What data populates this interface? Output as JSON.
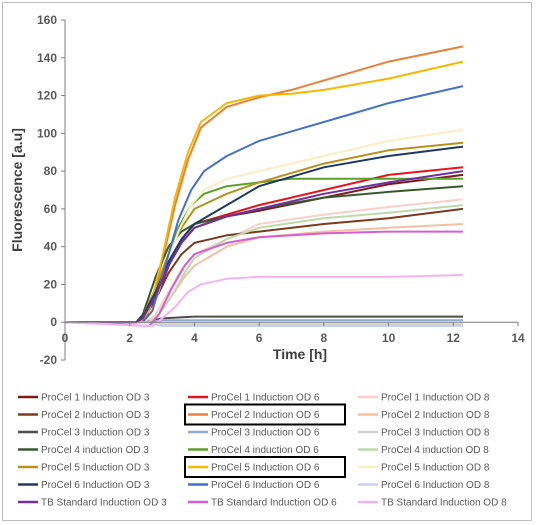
{
  "chart_data": {
    "type": "line",
    "title": "",
    "xlabel": "Time   [h]",
    "ylabel": "Fluorescence   [a.u]",
    "xlim": [
      0,
      14
    ],
    "ylim": [
      -20,
      160
    ],
    "xticks": [
      "0",
      "2",
      "4",
      "6",
      "8",
      "10",
      "12",
      "14"
    ],
    "yticks": [
      "-20",
      "0",
      "20",
      "40",
      "60",
      "80",
      "100",
      "120",
      "140",
      "160"
    ],
    "grid": false,
    "legend_position": "bottom",
    "highlighted_series": [
      "ProCel 2 Induction OD 6",
      "ProCel 5 Induction OD 6"
    ],
    "series": [
      {
        "name": "ProCel 1 Induction OD 3",
        "color": "#7b1a1a",
        "x": [
          0,
          2.2,
          2.4,
          2.8,
          3.2,
          3.6,
          4,
          5,
          6,
          8,
          10,
          12.3
        ],
        "values": [
          0,
          0,
          2,
          14,
          30,
          42,
          50,
          56,
          59,
          66,
          73,
          78
        ]
      },
      {
        "name": "ProCel 1 Induction OD 6",
        "color": "#e8141c",
        "x": [
          0,
          2.3,
          2.5,
          2.9,
          3.3,
          3.7,
          4,
          5,
          6,
          8,
          10,
          12.3
        ],
        "values": [
          0,
          0,
          3,
          16,
          34,
          46,
          52,
          57,
          62,
          70,
          78,
          82
        ]
      },
      {
        "name": "ProCel 1 Induction OD 8",
        "color": "#f7cfcb",
        "x": [
          0,
          2.5,
          2.8,
          3.2,
          3.6,
          4,
          5,
          6,
          8,
          10,
          12.3
        ],
        "values": [
          0,
          0,
          4,
          16,
          28,
          36,
          44,
          52,
          57,
          61,
          65
        ]
      },
      {
        "name": "ProCel 2 Induction OD 3",
        "color": "#7a3b1e",
        "x": [
          0,
          2.2,
          2.4,
          2.8,
          3.2,
          3.6,
          4,
          5,
          6,
          8,
          10,
          12.3
        ],
        "values": [
          0,
          0,
          2,
          12,
          26,
          36,
          42,
          46,
          48,
          52,
          55,
          60
        ]
      },
      {
        "name": "ProCel 2 Induction OD 6",
        "color": "#e8803a",
        "x": [
          0,
          2.3,
          2.6,
          3,
          3.4,
          3.8,
          4.2,
          5,
          6,
          7,
          8,
          10,
          12.3
        ],
        "values": [
          0,
          0,
          6,
          32,
          62,
          86,
          103,
          114,
          119,
          123,
          128,
          138,
          146
        ]
      },
      {
        "name": "ProCel 2 Induction OD 8",
        "color": "#f3c0a3",
        "x": [
          0,
          2.6,
          2.9,
          3.3,
          3.7,
          4,
          5,
          6,
          8,
          10,
          12.3
        ],
        "values": [
          0,
          0,
          4,
          14,
          24,
          30,
          40,
          45,
          48,
          50,
          52
        ]
      },
      {
        "name": "ProCel 3 Induction OD 3",
        "color": "#4d4d4d",
        "x": [
          0,
          2.5,
          3,
          4,
          6,
          8,
          10,
          12.3
        ],
        "values": [
          0,
          0,
          2,
          3,
          3,
          3,
          3,
          3
        ]
      },
      {
        "name": "ProCel 3 Induction OD 6",
        "color": "#8faad8",
        "x": [
          0,
          2.5,
          3,
          4,
          6,
          8,
          10,
          12.3
        ],
        "values": [
          0,
          0,
          1,
          1,
          1,
          1,
          1,
          1
        ]
      },
      {
        "name": "ProCel 3 Induction OD 8",
        "color": "#d0d0d0",
        "x": [
          0,
          2.5,
          3,
          4,
          6,
          8,
          10,
          12.3
        ],
        "values": [
          0,
          0,
          -1,
          -1,
          -1,
          -1,
          -1,
          -1
        ]
      },
      {
        "name": "ProCel 4 induction OD 3",
        "color": "#375a2a",
        "x": [
          0,
          2.2,
          2.4,
          2.8,
          3.2,
          3.6,
          4,
          5,
          6,
          8,
          10,
          12.3
        ],
        "values": [
          0,
          0,
          4,
          24,
          40,
          48,
          52,
          56,
          60,
          66,
          69,
          72
        ]
      },
      {
        "name": "ProCel 4 induction OD 6",
        "color": "#5aa02c",
        "x": [
          0,
          2.4,
          2.7,
          3.1,
          3.5,
          3.9,
          4.3,
          5,
          6,
          7,
          8,
          10,
          12.3
        ],
        "values": [
          0,
          0,
          6,
          28,
          50,
          62,
          68,
          72,
          74,
          76,
          76,
          76,
          76
        ]
      },
      {
        "name": "ProCel 4 induction OD 8",
        "color": "#bcd9a8",
        "x": [
          0,
          2.6,
          2.9,
          3.3,
          3.7,
          4,
          5,
          6,
          8,
          10,
          12.3
        ],
        "values": [
          0,
          0,
          4,
          14,
          26,
          34,
          44,
          50,
          55,
          58,
          62
        ]
      },
      {
        "name": "ProCel 5 Induction OD 3",
        "color": "#b8901a",
        "x": [
          0,
          2.2,
          2.4,
          2.8,
          3.2,
          3.6,
          4,
          5,
          6,
          8,
          10,
          12.3
        ],
        "values": [
          0,
          0,
          3,
          18,
          36,
          50,
          60,
          68,
          74,
          84,
          91,
          95
        ]
      },
      {
        "name": "ProCel 5 Induction OD 6",
        "color": "#f5b800",
        "x": [
          0,
          2.3,
          2.6,
          3,
          3.4,
          3.8,
          4.2,
          5,
          6,
          7,
          8,
          10,
          12.3
        ],
        "values": [
          0,
          0,
          6,
          34,
          66,
          90,
          106,
          116,
          120,
          121,
          123,
          129,
          138
        ]
      },
      {
        "name": "ProCel 5 Induction OD 8",
        "color": "#fbeec2",
        "x": [
          0,
          2.4,
          2.7,
          3.1,
          3.5,
          3.9,
          4.3,
          5,
          6,
          8,
          10,
          12.3
        ],
        "values": [
          0,
          0,
          6,
          28,
          48,
          62,
          70,
          76,
          80,
          88,
          96,
          102
        ]
      },
      {
        "name": "ProCel 6 Induction OD 3",
        "color": "#1f3864",
        "x": [
          0,
          2.2,
          2.4,
          2.8,
          3.2,
          3.6,
          4,
          5,
          6,
          8,
          10,
          12.3
        ],
        "values": [
          0,
          0,
          3,
          16,
          32,
          44,
          52,
          62,
          72,
          82,
          88,
          93
        ]
      },
      {
        "name": "ProCel 6 Induction OD 6",
        "color": "#4472c4",
        "x": [
          0,
          2.4,
          2.7,
          3.1,
          3.5,
          3.9,
          4.3,
          5,
          6,
          7,
          8,
          10,
          12.3
        ],
        "values": [
          0,
          0,
          6,
          30,
          54,
          70,
          80,
          88,
          96,
          101,
          106,
          116,
          125
        ]
      },
      {
        "name": "ProCel 6 Induction OD 8",
        "color": "#c5d3ec",
        "x": [
          0,
          2.5,
          3,
          4,
          6,
          8,
          10,
          12.3
        ],
        "values": [
          0,
          0,
          -2,
          -2,
          -2,
          -2,
          -2,
          -2
        ]
      },
      {
        "name": "TB Standard Induction OD 3",
        "color": "#7030a0",
        "x": [
          0,
          2.2,
          2.4,
          2.8,
          3.2,
          3.6,
          4,
          5,
          6,
          8,
          10,
          12.3
        ],
        "values": [
          0,
          0,
          2,
          14,
          30,
          42,
          50,
          56,
          60,
          68,
          74,
          80
        ]
      },
      {
        "name": "TB Standard Induction OD 6",
        "color": "#d35fd3",
        "x": [
          0,
          2.6,
          2.9,
          3.3,
          3.7,
          4,
          5,
          6,
          8,
          10,
          12.3
        ],
        "values": [
          0,
          -2,
          4,
          18,
          30,
          36,
          42,
          45,
          47,
          48,
          48
        ]
      },
      {
        "name": "TB Standard Induction OD 8",
        "color": "#f3b3f3",
        "x": [
          0,
          2.7,
          3,
          3.4,
          3.8,
          4.2,
          5,
          6,
          8,
          10,
          12.3
        ],
        "values": [
          0,
          -2,
          2,
          8,
          16,
          20,
          23,
          24,
          24,
          24,
          25
        ]
      }
    ]
  }
}
